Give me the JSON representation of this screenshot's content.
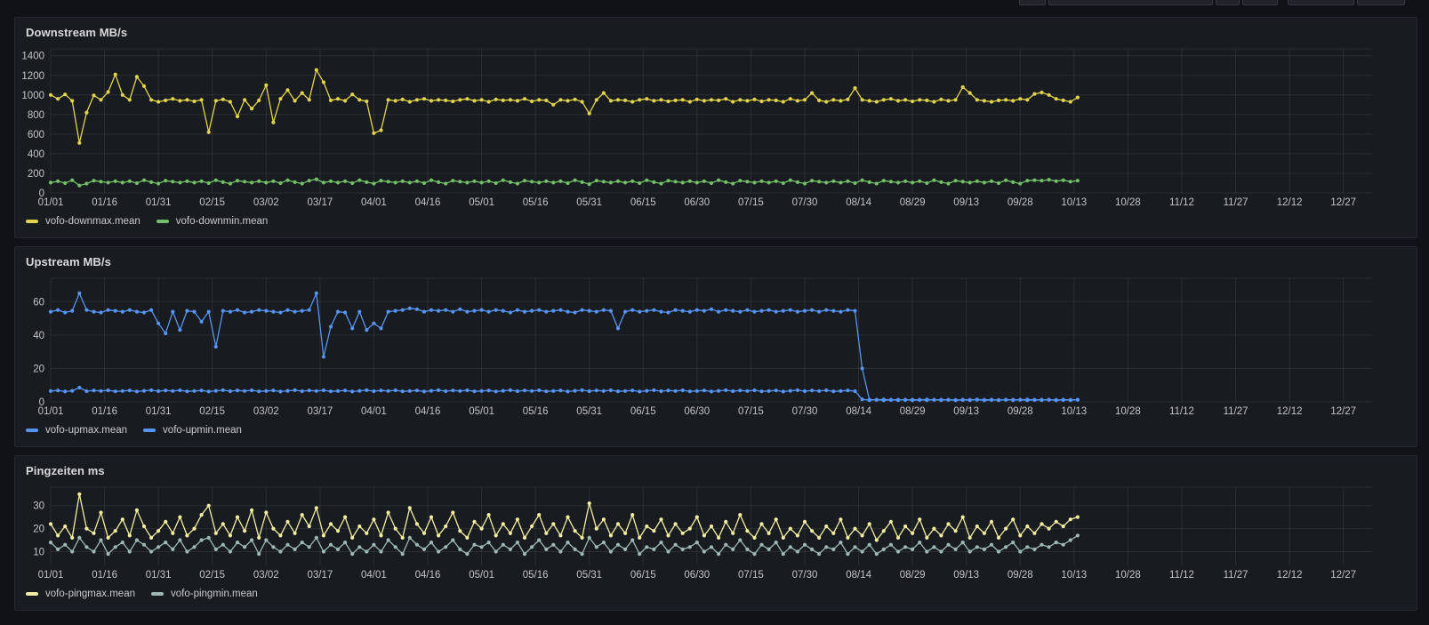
{
  "theme": {
    "page_bg": "#111217",
    "panel_bg": "#181b1f",
    "panel_border": "#25272e",
    "grid_color": "rgba(210,216,230,0.10)",
    "tick_label_color": "#c2c4c7",
    "title_color": "#d8d9da"
  },
  "chart_data": [
    {
      "type": "line",
      "title": "Downstream MB/s",
      "legend_position": "bottom",
      "grid": true,
      "x_tick_labels": [
        "01/01",
        "01/16",
        "01/31",
        "02/15",
        "03/02",
        "03/17",
        "04/01",
        "04/16",
        "05/01",
        "05/16",
        "05/31",
        "06/15",
        "06/30",
        "07/15",
        "07/30",
        "08/14",
        "08/29",
        "09/13",
        "09/28",
        "10/13",
        "10/28",
        "11/12",
        "11/27",
        "12/12",
        "12/27"
      ],
      "x_tick_days": [
        0,
        15,
        30,
        45,
        60,
        75,
        90,
        105,
        120,
        135,
        150,
        165,
        180,
        195,
        210,
        225,
        240,
        255,
        270,
        285,
        300,
        315,
        330,
        345,
        360
      ],
      "x_domain": [
        0,
        368
      ],
      "ylim": [
        0,
        1470
      ],
      "y_ticks": [
        0,
        200,
        400,
        600,
        800,
        1000,
        1200,
        1400
      ],
      "x_start_day": 0,
      "x_step_days": 2,
      "series": [
        {
          "name": "vofo-downmax.mean",
          "color": "#e2d44d",
          "values": [
            1000,
            960,
            1005,
            940,
            510,
            820,
            995,
            950,
            1030,
            1210,
            1000,
            950,
            1185,
            1090,
            950,
            930,
            945,
            960,
            940,
            950,
            935,
            950,
            620,
            940,
            955,
            930,
            780,
            950,
            860,
            945,
            1100,
            720,
            960,
            1050,
            940,
            1020,
            950,
            1255,
            1130,
            945,
            960,
            940,
            1005,
            950,
            935,
            610,
            640,
            950,
            940,
            955,
            930,
            950,
            960,
            940,
            950,
            945,
            935,
            950,
            960,
            940,
            950,
            930,
            955,
            945,
            950,
            940,
            960,
            935,
            950,
            945,
            900,
            950,
            940,
            955,
            930,
            810,
            950,
            1020,
            940,
            950,
            945,
            930,
            950,
            960,
            940,
            950,
            935,
            945,
            950,
            930,
            955,
            940,
            950,
            945,
            960,
            930,
            950,
            940,
            955,
            935,
            950,
            945,
            930,
            960,
            940,
            950,
            1020,
            945,
            930,
            950,
            940,
            955,
            1070,
            950,
            940,
            930,
            950,
            960,
            940,
            950,
            935,
            950,
            945,
            930,
            955,
            940,
            950,
            1080,
            1020,
            950,
            940,
            930,
            945,
            950,
            940,
            960,
            950,
            1010,
            1025,
            1000,
            960,
            945,
            930,
            975
          ]
        },
        {
          "name": "vofo-downmin.mean",
          "color": "#73bf69",
          "values": [
            105,
            120,
            100,
            130,
            75,
            95,
            125,
            115,
            105,
            120,
            105,
            120,
            100,
            130,
            110,
            95,
            125,
            115,
            105,
            120,
            105,
            120,
            100,
            130,
            110,
            95,
            125,
            115,
            105,
            120,
            105,
            120,
            100,
            130,
            110,
            95,
            125,
            140,
            105,
            120,
            105,
            120,
            100,
            130,
            110,
            95,
            125,
            115,
            105,
            120,
            105,
            120,
            100,
            130,
            110,
            95,
            125,
            115,
            105,
            120,
            105,
            120,
            100,
            130,
            110,
            95,
            125,
            115,
            105,
            120,
            105,
            120,
            100,
            130,
            110,
            90,
            125,
            115,
            105,
            120,
            105,
            120,
            100,
            130,
            110,
            95,
            125,
            115,
            105,
            120,
            105,
            120,
            100,
            130,
            110,
            95,
            125,
            115,
            105,
            120,
            105,
            120,
            100,
            130,
            110,
            95,
            125,
            115,
            105,
            120,
            105,
            120,
            100,
            130,
            110,
            95,
            125,
            115,
            105,
            120,
            105,
            120,
            100,
            130,
            110,
            95,
            125,
            115,
            105,
            120,
            105,
            120,
            100,
            130,
            110,
            95,
            125,
            130,
            125,
            135,
            120,
            130,
            115,
            125
          ]
        }
      ]
    },
    {
      "type": "line",
      "title": "Upstream MB/s",
      "legend_position": "bottom",
      "grid": true,
      "x_tick_labels": [
        "01/01",
        "01/16",
        "01/31",
        "02/15",
        "03/02",
        "03/17",
        "04/01",
        "04/16",
        "05/01",
        "05/16",
        "05/31",
        "06/15",
        "06/30",
        "07/15",
        "07/30",
        "08/14",
        "08/29",
        "09/13",
        "09/28",
        "10/13",
        "10/28",
        "11/12",
        "11/27",
        "12/12",
        "12/27"
      ],
      "x_tick_days": [
        0,
        15,
        30,
        45,
        60,
        75,
        90,
        105,
        120,
        135,
        150,
        165,
        180,
        195,
        210,
        225,
        240,
        255,
        270,
        285,
        300,
        315,
        330,
        345,
        360
      ],
      "x_domain": [
        0,
        368
      ],
      "ylim": [
        0,
        74
      ],
      "y_ticks": [
        0,
        20,
        40,
        60
      ],
      "x_start_day": 0,
      "x_step_days": 2,
      "series": [
        {
          "name": "vofo-upmax.mean",
          "color": "#5794f2",
          "values": [
            54,
            55,
            53.5,
            54.5,
            65,
            55,
            54,
            53.5,
            55,
            54.5,
            54,
            55,
            54,
            53.5,
            55,
            47,
            41,
            54,
            43,
            54.5,
            54,
            48,
            54,
            33,
            54.5,
            54,
            55,
            53.5,
            54,
            55,
            54.5,
            54,
            53.5,
            55,
            54,
            54.5,
            55,
            65,
            27,
            45,
            54,
            53.5,
            44,
            54,
            43,
            47,
            44,
            54,
            54.5,
            55,
            56,
            55.5,
            54,
            55,
            54.5,
            55,
            54,
            55.5,
            54,
            54.5,
            55,
            54,
            55,
            54.5,
            53.5,
            55,
            54,
            54.5,
            55,
            54,
            54.5,
            55,
            54,
            53.5,
            55,
            54.5,
            54,
            55,
            54.5,
            44,
            54,
            55,
            54,
            54.5,
            55,
            54,
            53.5,
            55,
            54.5,
            54,
            55,
            54.5,
            55.5,
            54,
            55,
            54.5,
            54,
            55,
            54,
            54.5,
            55,
            54,
            54.5,
            55,
            54,
            54.5,
            55,
            54,
            55,
            54.5,
            54,
            55,
            54.5,
            20,
            1.3,
            1.2,
            1.4,
            1.2,
            1.3,
            1.1,
            1.3,
            1.2,
            1.4,
            1.2,
            1.3,
            1.2,
            1.1,
            1.3,
            1.2,
            1.4,
            1.2,
            1.3,
            1.1,
            1.2,
            1.3,
            1.2,
            1.4,
            1.2,
            1.3,
            1.2,
            1.1,
            1.3,
            1.2,
            1.3
          ]
        },
        {
          "name": "vofo-upmin.mean",
          "color": "#5794f2",
          "values": [
            6.5,
            6.8,
            6.2,
            6.6,
            8.5,
            6.4,
            6.8,
            6.5,
            6.9,
            6.3,
            6.5,
            6.8,
            6.2,
            6.6,
            7,
            6.4,
            6.8,
            6.5,
            6.9,
            6.3,
            6.5,
            6.8,
            6.2,
            6.6,
            7,
            6.4,
            6.8,
            6.5,
            6.9,
            6.3,
            6.5,
            6.8,
            6.2,
            6.6,
            7,
            6.4,
            6.8,
            6.5,
            6.9,
            6.3,
            6.5,
            6.8,
            6.2,
            6.6,
            7,
            6.4,
            6.8,
            6.5,
            6.9,
            6.3,
            6.5,
            6.8,
            6.2,
            6.6,
            7,
            6.4,
            6.8,
            6.5,
            6.9,
            6.3,
            6.5,
            6.8,
            6.2,
            6.6,
            7,
            6.4,
            6.8,
            6.5,
            6.9,
            6.3,
            6.5,
            6.8,
            6.2,
            6.6,
            7,
            6.4,
            6.8,
            6.5,
            6.9,
            6.3,
            6.5,
            6.8,
            6.2,
            6.6,
            7,
            6.4,
            6.8,
            6.5,
            6.9,
            6.3,
            6.5,
            6.8,
            6.2,
            6.6,
            7,
            6.4,
            6.8,
            6.5,
            6.9,
            6.3,
            6.5,
            6.8,
            6.2,
            6.6,
            7,
            6.4,
            6.8,
            6.5,
            6.9,
            6.3,
            6.5,
            6.8,
            6.4,
            1.5,
            1,
            1.2,
            0.9,
            1.1,
            1,
            1.3,
            0.9,
            1.1,
            1,
            1.2,
            1,
            1.2,
            0.9,
            1.1,
            1,
            1.3,
            0.9,
            1.1,
            1,
            1.2,
            1,
            1.2,
            0.9,
            1.1,
            1,
            1.3,
            0.9,
            1.1,
            1,
            1.2
          ]
        }
      ]
    },
    {
      "type": "line",
      "title": "Pingzeiten ms",
      "legend_position": "bottom",
      "grid": true,
      "x_tick_labels": [
        "01/01",
        "01/16",
        "01/31",
        "02/15",
        "03/02",
        "03/17",
        "04/01",
        "04/16",
        "05/01",
        "05/16",
        "05/31",
        "06/15",
        "06/30",
        "07/15",
        "07/30",
        "08/14",
        "08/29",
        "09/13",
        "09/28",
        "10/13",
        "10/28",
        "11/12",
        "11/27",
        "12/12",
        "12/27"
      ],
      "x_tick_days": [
        0,
        15,
        30,
        45,
        60,
        75,
        90,
        105,
        120,
        135,
        150,
        165,
        180,
        195,
        210,
        225,
        240,
        255,
        270,
        285,
        300,
        315,
        330,
        345,
        360
      ],
      "x_domain": [
        0,
        368
      ],
      "ylim": [
        4,
        38
      ],
      "y_ticks": [
        10,
        20,
        30
      ],
      "x_start_day": 0,
      "x_step_days": 2,
      "series": [
        {
          "name": "vofo-pingmax.mean",
          "color": "#f2eda0",
          "values": [
            22,
            17,
            21,
            16,
            35,
            20,
            18,
            27,
            16,
            19,
            24,
            17,
            28,
            21,
            16,
            19,
            23,
            18,
            25,
            17,
            20,
            26,
            30,
            18,
            22,
            17,
            25,
            19,
            28,
            16,
            27,
            20,
            17,
            23,
            18,
            26,
            21,
            29,
            17,
            22,
            19,
            25,
            16,
            21,
            18,
            24,
            17,
            27,
            20,
            16,
            29,
            22,
            18,
            25,
            17,
            21,
            27,
            19,
            16,
            23,
            20,
            26,
            17,
            22,
            18,
            24,
            16,
            21,
            26,
            18,
            22,
            17,
            25,
            19,
            16,
            31,
            20,
            24,
            17,
            22,
            18,
            26,
            16,
            21,
            19,
            24,
            17,
            22,
            18,
            20,
            25,
            17,
            21,
            16,
            23,
            18,
            26,
            19,
            16,
            22,
            18,
            24,
            16,
            20,
            17,
            23,
            19,
            16,
            21,
            18,
            24,
            16,
            20,
            17,
            22,
            15,
            19,
            23,
            16,
            21,
            18,
            24,
            16,
            20,
            17,
            22,
            19,
            25,
            16,
            21,
            18,
            23,
            16,
            20,
            24,
            17,
            21,
            18,
            22,
            20,
            23,
            21,
            24,
            25
          ]
        },
        {
          "name": "vofo-pingmin.mean",
          "color": "#9db8b5",
          "values": [
            14,
            11,
            13,
            10,
            16,
            12,
            10,
            15,
            9,
            12,
            14,
            10,
            15,
            13,
            10,
            12,
            14,
            11,
            15,
            10,
            12,
            15,
            16,
            11,
            13,
            10,
            14,
            12,
            15,
            9,
            15,
            12,
            10,
            13,
            11,
            14,
            12,
            16,
            10,
            13,
            11,
            14,
            9,
            12,
            10,
            13,
            10,
            15,
            12,
            9,
            16,
            13,
            11,
            14,
            10,
            12,
            15,
            11,
            9,
            13,
            12,
            14,
            10,
            13,
            11,
            14,
            9,
            12,
            15,
            11,
            13,
            10,
            14,
            11,
            9,
            16,
            12,
            14,
            10,
            13,
            11,
            15,
            9,
            12,
            11,
            14,
            10,
            13,
            11,
            12,
            14,
            10,
            12,
            9,
            13,
            11,
            15,
            11,
            9,
            13,
            11,
            14,
            9,
            12,
            10,
            13,
            11,
            9,
            12,
            11,
            14,
            9,
            12,
            10,
            13,
            9,
            11,
            13,
            10,
            12,
            11,
            14,
            10,
            12,
            10,
            13,
            11,
            14,
            10,
            12,
            11,
            13,
            10,
            12,
            14,
            10,
            12,
            11,
            13,
            12,
            14,
            13,
            15,
            17
          ]
        }
      ]
    }
  ]
}
